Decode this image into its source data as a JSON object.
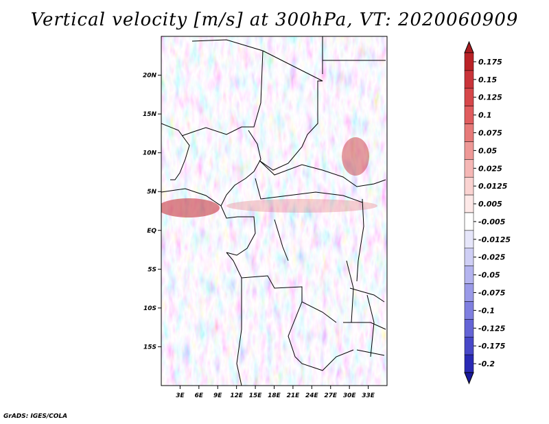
{
  "title": "Vertical velocity [m/s] at 300hPa, VT: 2020060909",
  "footer": "GrADS: IGES/COLA",
  "map": {
    "variable": "Vertical velocity",
    "units": "m/s",
    "level": "300hPa",
    "valid_time": "2020060909",
    "lon_range": [
      0,
      36
    ],
    "lat_range": [
      -20,
      25
    ],
    "x_ticks": [
      {
        "value": 3,
        "label": "3E"
      },
      {
        "value": 6,
        "label": "6E"
      },
      {
        "value": 9,
        "label": "9E"
      },
      {
        "value": 12,
        "label": "12E"
      },
      {
        "value": 15,
        "label": "15E"
      },
      {
        "value": 18,
        "label": "18E"
      },
      {
        "value": 21,
        "label": "21E"
      },
      {
        "value": 24,
        "label": "24E"
      },
      {
        "value": 27,
        "label": "27E"
      },
      {
        "value": 30,
        "label": "30E"
      },
      {
        "value": 33,
        "label": "33E"
      }
    ],
    "y_ticks": [
      {
        "value": 20,
        "label": "20N"
      },
      {
        "value": 15,
        "label": "15N"
      },
      {
        "value": 10,
        "label": "10N"
      },
      {
        "value": 5,
        "label": "5N"
      },
      {
        "value": 0,
        "label": "EQ"
      },
      {
        "value": -5,
        "label": "5S"
      },
      {
        "value": -10,
        "label": "10S"
      },
      {
        "value": -15,
        "label": "15S"
      }
    ]
  },
  "colorbar": {
    "levels": [
      {
        "label": "0.175",
        "color": "#ba2327"
      },
      {
        "label": "0.15",
        "color": "#c9343a"
      },
      {
        "label": "0.125",
        "color": "#d6474a"
      },
      {
        "label": "0.1",
        "color": "#e05c5e"
      },
      {
        "label": "0.075",
        "color": "#e77a79"
      },
      {
        "label": "0.05",
        "color": "#ee9896"
      },
      {
        "label": "0.025",
        "color": "#f5b7b5"
      },
      {
        "label": "0.0125",
        "color": "#fad3d1"
      },
      {
        "label": "0.005",
        "color": "#fde9e8"
      },
      {
        "label": "-0.005",
        "color": "#ffffff"
      },
      {
        "label": "-0.0125",
        "color": "#e6e6fa"
      },
      {
        "label": "-0.025",
        "color": "#cfcff5"
      },
      {
        "label": "-0.05",
        "color": "#b4b4ef"
      },
      {
        "label": "-0.075",
        "color": "#9a9ae8"
      },
      {
        "label": "-0.1",
        "color": "#7f7fe0"
      },
      {
        "label": "-0.125",
        "color": "#6464d6"
      },
      {
        "label": "-0.175",
        "color": "#4848c8"
      },
      {
        "label": "-0.2",
        "color": "#2a2ab4"
      }
    ],
    "top_color": "#a81d21",
    "bottom_color": "#1a1a9c"
  }
}
